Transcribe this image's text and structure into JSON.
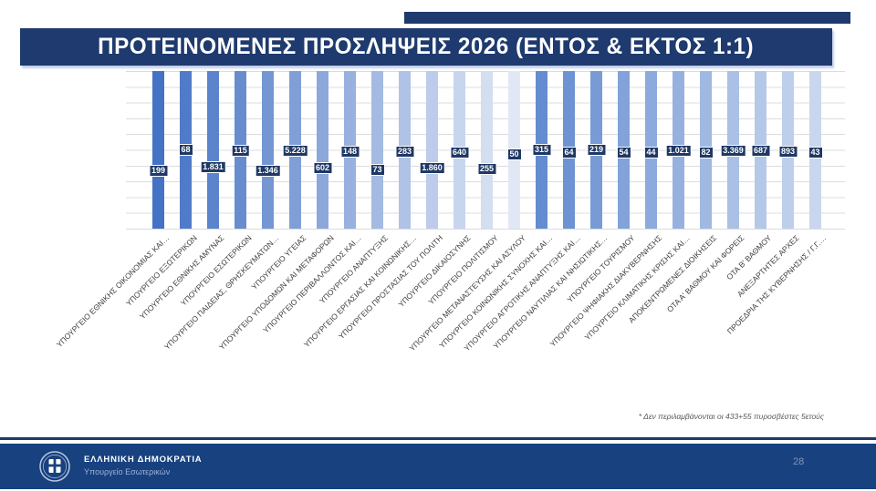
{
  "slide": {
    "title": "ΠΡΟΤΕΙΝΟΜΕΝΕΣ ΠΡΟΣΛΗΨΕΙΣ 2026 (ΕΝΤΟΣ & ΕΚΤΟΣ 1:1)",
    "footnote": "* Δεν περιλαμβάνονται οι 433+55 πυροσβέστες 5ετούς",
    "page_number": "28"
  },
  "footer": {
    "organization": "ΕΛΛΗΝΙΚΗ ΔΗΜΟΚΡΑΤΙΑ",
    "department": "Υπουργείο Εσωτερικών",
    "emblem_icon": "greek-republic-emblem-icon"
  },
  "colors": {
    "banner_navy": "#1E3A6E",
    "footer_navy": "#17417F",
    "value_chip_navy": "#1F3864",
    "gridline": "#DCDCDC",
    "axis_label": "#3F3F3F",
    "footnote_gray": "#595959",
    "page_number_gray_blue": "#8595B8"
  },
  "chart_data": {
    "type": "bar",
    "title": "ΠΡΟΤΕΙΝΟΜΕΝΕΣ ΠΡΟΣΛΗΨΕΙΣ 2026 (ΕΝΤΟΣ & ΕΚΤΟΣ 1:1)",
    "xlabel": "",
    "ylabel": "",
    "legend": "none",
    "grid": "horizontal",
    "bars_rendered_full_height": true,
    "note": "* Δεν περιλαμβάνονται οι 433+55 πυροσβέστες 5ετούς",
    "categories": [
      "ΥΠΟΥΡΓΕΙΟ ΕΘΝΙΚΗΣ ΟΙΚΟΝΟΜΙΑΣ ΚΑΙ…",
      "ΥΠΟΥΡΓΕΙΟ ΕΞΩΤΕΡΙΚΩΝ",
      "ΥΠΟΥΡΓΕΙΟ ΕΘΝΙΚΗΣ ΑΜΥΝΑΣ",
      "ΥΠΟΥΡΓΕΙΟ ΕΣΩΤΕΡΙΚΩΝ",
      "ΥΠΟΥΡΓΕΙΟ ΠΑΙΔΕΙΑΣ, ΘΡΗΣΚΕΥΜΑΤΩΝ…",
      "ΥΠΟΥΡΓΕΙΟ ΥΓΕΙΑΣ",
      "ΥΠΟΥΡΓΕΙΟ ΥΠΟΔΟΜΩΝ ΚΑΙ ΜΕΤΑΦΟΡΩΝ",
      "ΥΠΟΥΡΓΕΙΟ ΠΕΡΙΒΑΛΛΟΝΤΟΣ ΚΑΙ…",
      "ΥΠΟΥΡΓΕΙΟ ΑΝΑΠΤΥΞΗΣ",
      "ΥΠΟΥΡΓΕΙΟ ΕΡΓΑΣΙΑΣ ΚΑΙ ΚΟΙΝΩΝΙΚΗΣ…",
      "ΥΠΟΥΡΓΕΙΟ ΠΡΟΣΤΑΣΙΑΣ ΤΟΥ ΠΟΛΙΤΗ",
      "ΥΠΟΥΡΓΕΙΟ ΔΙΚΑΙΟΣΥΝΗΣ",
      "ΥΠΟΥΡΓΕΙΟ ΠΟΛΙΤΙΣΜΟΥ",
      "ΥΠΟΥΡΓΕΙΟ ΜΕΤΑΝΑΣΤΕΥΣΗΣ ΚΑΙ ΑΣΥΛΟΥ",
      "ΥΠΟΥΡΓΕΙΟ ΚΟΙΝΩΝΙΚΗΣ ΣΥΝΟΧΗΣ ΚΑΙ…",
      "ΥΠΟΥΡΓΕΙΟ ΑΓΡΟΤΙΚΗΣ ΑΝΑΠΤΥΞΗΣ ΚΑΙ…",
      "ΥΠΟΥΡΓΕΙΟ ΝΑΥΤΙΛΙΑΣ ΚΑΙ ΝΗΣΙΩΤΙΚΗΣ…",
      "ΥΠΟΥΡΓΕΙΟ ΤΟΥΡΙΣΜΟΥ",
      "ΥΠΟΥΡΓΕΙΟ ΨΗΦΙΑΚΗΣ ΔΙΑΚΥΒΕΡΝΗΣΗΣ",
      "ΥΠΟΥΡΓΕΙΟ ΚΛΙΜΑΤΙΚΗΣ ΚΡΙΣΗΣ ΚΑΙ…",
      "ΑΠΟΚΕΝΤΡΩΜΕΝΕΣ ΔΙΟΙΚΗΣΕΙΣ",
      "ΟΤΑ Α' ΒΑΘΜΟΥ ΚΑΙ ΦΟΡΕΙΣ",
      "ΟΤΑ Β' ΒΑΘΜΟΥ",
      "ΑΝΕΞΑΡΤΗΤΕΣ ΑΡΧΕΣ",
      "ΠΡΟΕΔΡΙΑ ΤΗΣ ΚΥΒΕΡΝΗΣΗΣ / Γ.Γ.…"
    ],
    "values": [
      199,
      68,
      1831,
      115,
      1346,
      5228,
      602,
      148,
      73,
      283,
      1860,
      640,
      255,
      50,
      315,
      64,
      219,
      54,
      44,
      1021,
      82,
      3369,
      687,
      893,
      43
    ],
    "value_labels": [
      "199",
      "68",
      "1.831",
      "115",
      "1.346",
      "5.228",
      "602",
      "148",
      "73",
      "283",
      "1.860",
      "640",
      "255",
      "50",
      "315",
      "64",
      "219",
      "54",
      "44",
      "1.021",
      "82",
      "3.369",
      "687",
      "893",
      "43"
    ],
    "bar_colors": [
      "#4472C4",
      "#507BC8",
      "#5C84CC",
      "#688DCF",
      "#7496D3",
      "#809FD7",
      "#8CA8DB",
      "#98B1DF",
      "#A4BAE2",
      "#B0C3E6",
      "#BCCCEA",
      "#C8D5EE",
      "#D4DEF1",
      "#E1E7F5",
      "#648CD0",
      "#6E93D3",
      "#789BD6",
      "#82A2D9",
      "#8CAADC",
      "#96B1DF",
      "#A0B9E2",
      "#AAC0E5",
      "#B4C8E8",
      "#BECFEB",
      "#C8D7EE"
    ]
  }
}
